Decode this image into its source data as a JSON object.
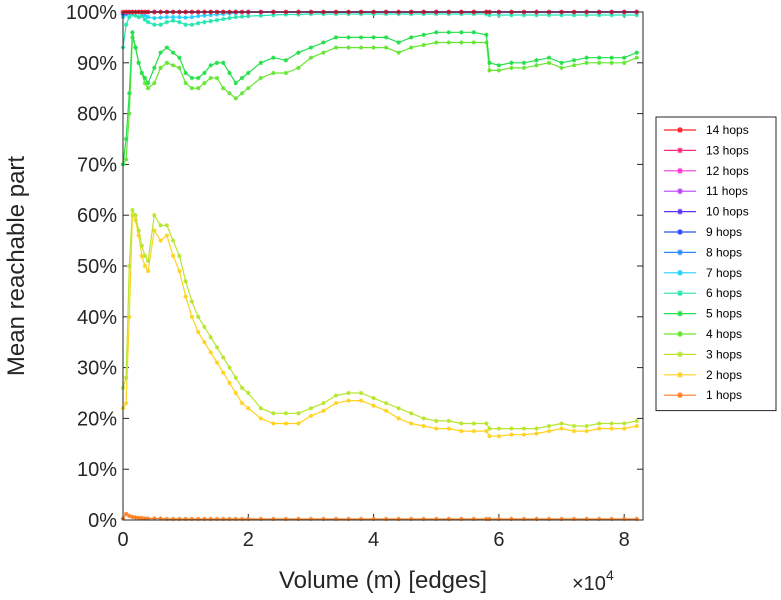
{
  "chart_data": {
    "type": "line",
    "xlabel": "Volume (m) [edges]",
    "ylabel": "Mean reachable part",
    "x_multiplier": "×10",
    "x_multiplier_exp": "4",
    "xlim": [
      0,
      83000
    ],
    "ylim": [
      0,
      100
    ],
    "xticks": [
      0,
      20000,
      40000,
      60000,
      80000
    ],
    "xtick_labels": [
      "0",
      "2",
      "4",
      "6",
      "8"
    ],
    "yticks": [
      0,
      10,
      20,
      30,
      40,
      50,
      60,
      70,
      80,
      90,
      100
    ],
    "ytick_labels": [
      "0%",
      "10%",
      "20%",
      "30%",
      "40%",
      "50%",
      "60%",
      "70%",
      "80%",
      "90%",
      "100%"
    ],
    "grid": false,
    "legend_position": "right",
    "x": [
      0,
      500,
      1000,
      1500,
      2000,
      2500,
      3000,
      3500,
      4000,
      5000,
      6000,
      7000,
      8000,
      9000,
      10000,
      11000,
      12000,
      13000,
      14000,
      15000,
      16000,
      17000,
      18000,
      19000,
      20000,
      22000,
      24000,
      26000,
      28000,
      30000,
      32000,
      34000,
      36000,
      38000,
      40000,
      42000,
      44000,
      46000,
      48000,
      50000,
      52000,
      54000,
      56000,
      58000,
      58500,
      60000,
      62000,
      64000,
      66000,
      68000,
      70000,
      72000,
      74000,
      76000,
      78000,
      80000,
      82000
    ],
    "series": [
      {
        "name": "14 hops",
        "color": "#ff2020",
        "values": [
          100,
          100,
          100,
          100,
          100,
          100,
          100,
          100,
          100,
          100,
          100,
          100,
          100,
          100,
          100,
          100,
          100,
          100,
          100,
          100,
          100,
          100,
          100,
          100,
          100,
          100,
          100,
          100,
          100,
          100,
          100,
          100,
          100,
          100,
          100,
          100,
          100,
          100,
          100,
          100,
          100,
          100,
          100,
          100,
          100,
          100,
          100,
          100,
          100,
          100,
          100,
          100,
          100,
          100,
          100,
          100,
          100
        ]
      },
      {
        "name": "13 hops",
        "color": "#ff2a80",
        "values": [
          100,
          100,
          100,
          100,
          100,
          100,
          100,
          100,
          100,
          100,
          100,
          100,
          100,
          100,
          100,
          100,
          100,
          100,
          100,
          100,
          100,
          100,
          100,
          100,
          100,
          100,
          100,
          100,
          100,
          100,
          100,
          100,
          100,
          100,
          100,
          100,
          100,
          100,
          100,
          100,
          100,
          100,
          100,
          100,
          100,
          100,
          100,
          100,
          100,
          100,
          100,
          100,
          100,
          100,
          100,
          100,
          100
        ]
      },
      {
        "name": "12 hops",
        "color": "#ff33d6",
        "values": [
          100,
          100,
          100,
          100,
          100,
          100,
          100,
          100,
          100,
          100,
          100,
          100,
          100,
          100,
          100,
          100,
          100,
          100,
          100,
          100,
          100,
          100,
          100,
          100,
          100,
          100,
          100,
          100,
          100,
          100,
          100,
          100,
          100,
          100,
          100,
          100,
          100,
          100,
          100,
          100,
          100,
          100,
          100,
          100,
          100,
          100,
          100,
          100,
          100,
          100,
          100,
          100,
          100,
          100,
          100,
          100,
          100
        ]
      },
      {
        "name": "11 hops",
        "color": "#b840ff",
        "values": [
          100,
          100,
          100,
          100,
          100,
          100,
          100,
          100,
          100,
          100,
          100,
          100,
          100,
          100,
          100,
          100,
          100,
          100,
          100,
          100,
          100,
          100,
          100,
          100,
          100,
          100,
          100,
          100,
          100,
          100,
          100,
          100,
          100,
          100,
          100,
          100,
          100,
          100,
          100,
          100,
          100,
          100,
          100,
          100,
          100,
          100,
          100,
          100,
          100,
          100,
          100,
          100,
          100,
          100,
          100,
          100,
          100
        ]
      },
      {
        "name": "10 hops",
        "color": "#5a33ff",
        "values": [
          100,
          100,
          100,
          100,
          100,
          100,
          100,
          100,
          100,
          100,
          100,
          100,
          100,
          100,
          100,
          100,
          100,
          100,
          100,
          100,
          100,
          100,
          100,
          100,
          100,
          100,
          100,
          100,
          100,
          100,
          100,
          100,
          100,
          100,
          100,
          100,
          100,
          100,
          100,
          100,
          100,
          100,
          100,
          100,
          100,
          100,
          100,
          100,
          100,
          100,
          100,
          100,
          100,
          100,
          100,
          100,
          100
        ]
      },
      {
        "name": "9 hops",
        "color": "#2b4dff",
        "values": [
          99.8,
          99.9,
          100,
          100,
          100,
          100,
          100,
          100,
          100,
          100,
          100,
          100,
          100,
          100,
          100,
          100,
          100,
          100,
          100,
          100,
          100,
          100,
          100,
          100,
          100,
          100,
          100,
          100,
          100,
          100,
          100,
          100,
          100,
          100,
          100,
          100,
          100,
          100,
          100,
          100,
          100,
          100,
          100,
          100,
          100,
          100,
          100,
          100,
          100,
          100,
          100,
          100,
          100,
          100,
          100,
          100,
          100
        ]
      },
      {
        "name": "8 hops",
        "color": "#2b8cff",
        "values": [
          99.5,
          99.7,
          99.9,
          100,
          100,
          100,
          100,
          100,
          100,
          100,
          100,
          100,
          100,
          100,
          100,
          100,
          100,
          100,
          100,
          100,
          100,
          100,
          100,
          100,
          100,
          100,
          100,
          100,
          100,
          100,
          100,
          100,
          100,
          100,
          100,
          100,
          100,
          100,
          100,
          100,
          100,
          100,
          100,
          100,
          100,
          100,
          100,
          100,
          100,
          100,
          100,
          100,
          100,
          100,
          100,
          100,
          100
        ]
      },
      {
        "name": "7 hops",
        "color": "#22d0ff",
        "values": [
          99,
          99.5,
          99.8,
          100,
          100,
          100,
          99.8,
          99.3,
          99,
          98.8,
          98.9,
          99,
          99,
          99,
          98.9,
          99,
          99.2,
          99.3,
          99.4,
          99.5,
          99.6,
          99.7,
          99.8,
          99.9,
          99.9,
          100,
          100,
          100,
          100,
          100,
          100,
          100,
          100,
          100,
          100,
          100,
          100,
          100,
          100,
          100,
          100,
          100,
          100,
          100,
          99.9,
          99.9,
          99.9,
          99.9,
          99.9,
          99.9,
          99.9,
          99.9,
          99.9,
          99.9,
          99.9,
          99.9,
          99.9
        ]
      },
      {
        "name": "6 hops",
        "color": "#22e6b0",
        "values": [
          93,
          97.5,
          99,
          99.5,
          99.3,
          99,
          99.2,
          98.5,
          98,
          97.5,
          97.5,
          98,
          98.3,
          98,
          97.5,
          97.5,
          97.8,
          98,
          98.2,
          98.4,
          98.6,
          98.8,
          99,
          99.1,
          99.2,
          99.3,
          99.4,
          99.5,
          99.5,
          99.6,
          99.6,
          99.6,
          99.6,
          99.6,
          99.6,
          99.6,
          99.6,
          99.6,
          99.6,
          99.6,
          99.6,
          99.6,
          99.6,
          99.6,
          99.4,
          99.4,
          99.4,
          99.4,
          99.4,
          99.4,
          99.4,
          99.4,
          99.4,
          99.4,
          99.4,
          99.4,
          99.4
        ]
      },
      {
        "name": "5 hops",
        "color": "#22e04a",
        "values": [
          70,
          75,
          84,
          96,
          93,
          90,
          88,
          87,
          86,
          89,
          92,
          93,
          92,
          91,
          88,
          87,
          87,
          88,
          89.5,
          90,
          90,
          88,
          86,
          87,
          88,
          90,
          91,
          90.5,
          92,
          93,
          94,
          95,
          95,
          95,
          95,
          95,
          94,
          95,
          95.5,
          96,
          96,
          96,
          96,
          95.5,
          90,
          89.5,
          90,
          90,
          90.5,
          91,
          90,
          90.5,
          91,
          91,
          91,
          91,
          92
        ]
      },
      {
        "name": "4 hops",
        "color": "#66e633",
        "values": [
          70,
          71,
          80,
          95,
          93,
          90,
          88,
          86,
          85,
          86,
          89,
          90,
          89.5,
          89,
          86,
          85,
          85,
          86,
          87,
          87,
          85,
          84,
          83,
          84,
          85,
          87,
          88,
          88,
          89,
          91,
          92,
          93,
          93,
          93,
          93,
          93,
          92,
          93,
          93.5,
          94,
          94,
          94,
          94,
          94,
          88.5,
          88.5,
          89,
          89,
          89.5,
          90,
          89,
          89.5,
          90,
          90,
          90,
          90,
          91
        ]
      },
      {
        "name": "3 hops",
        "color": "#b8e62e",
        "values": [
          26,
          28,
          50,
          61,
          60,
          57,
          54,
          52,
          51,
          60,
          58,
          58,
          55,
          52,
          47,
          43,
          40,
          38,
          36,
          34,
          32,
          30,
          28,
          26,
          25,
          22,
          21,
          21,
          21,
          22,
          23,
          24.5,
          25,
          25,
          24,
          23,
          22,
          21,
          20,
          19.5,
          19.5,
          19,
          19,
          19,
          18,
          18,
          18,
          18,
          18,
          18.5,
          19,
          18.5,
          18.5,
          19,
          19,
          19,
          19.5
        ]
      },
      {
        "name": "2 hops",
        "color": "#ffd21f",
        "values": [
          22,
          23,
          40,
          60,
          59,
          56,
          52,
          50,
          49,
          57,
          55,
          56,
          52,
          49,
          44,
          40,
          37,
          35,
          33,
          31,
          29,
          27,
          25,
          23,
          22,
          20,
          19,
          19,
          19,
          20.5,
          21.5,
          23,
          23.5,
          23.5,
          22.5,
          21.5,
          20,
          19,
          18.5,
          18,
          18,
          17.5,
          17.5,
          17.5,
          16.5,
          16.5,
          16.8,
          16.8,
          17,
          17.5,
          18,
          17.5,
          17.5,
          18,
          18,
          18,
          18.5
        ]
      },
      {
        "name": "1 hops",
        "color": "#ff7f1f",
        "values": [
          0.3,
          1.2,
          0.8,
          0.6,
          0.5,
          0.4,
          0.4,
          0.3,
          0.3,
          0.3,
          0.3,
          0.2,
          0.2,
          0.2,
          0.2,
          0.2,
          0.2,
          0.2,
          0.2,
          0.2,
          0.2,
          0.2,
          0.2,
          0.2,
          0.2,
          0.2,
          0.2,
          0.2,
          0.2,
          0.2,
          0.2,
          0.2,
          0.2,
          0.2,
          0.2,
          0.2,
          0.2,
          0.2,
          0.2,
          0.2,
          0.2,
          0.2,
          0.2,
          0.2,
          0.2,
          0.2,
          0.2,
          0.2,
          0.2,
          0.2,
          0.2,
          0.2,
          0.2,
          0.2,
          0.2,
          0.2,
          0.2
        ]
      }
    ]
  }
}
